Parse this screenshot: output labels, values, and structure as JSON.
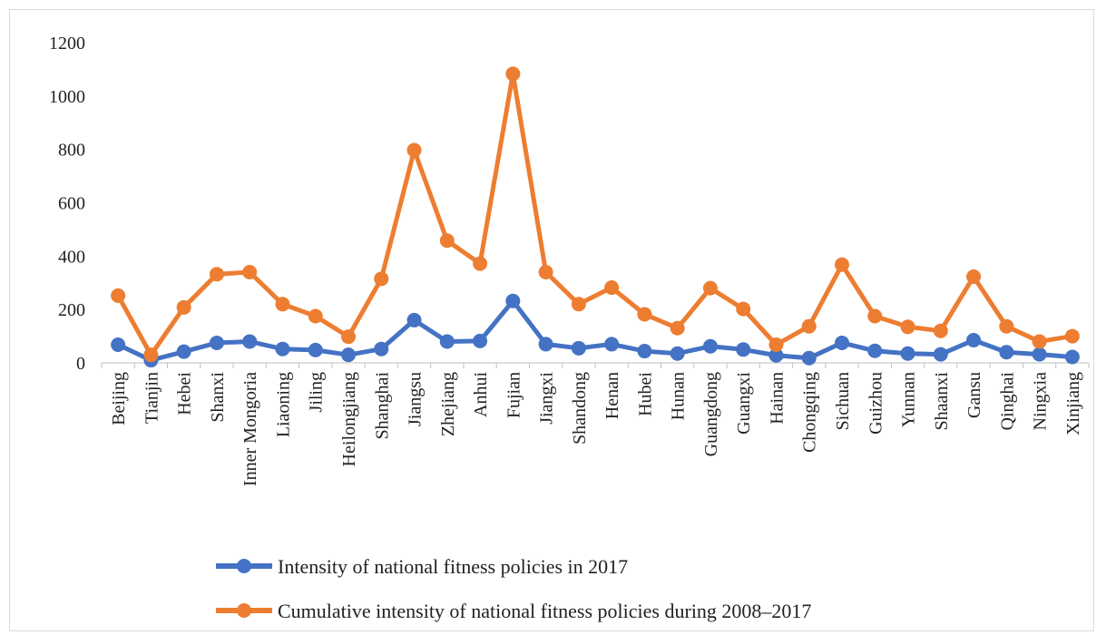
{
  "chart_data": {
    "type": "line",
    "categories": [
      "Beijing",
      "Tianjin",
      "Hebei",
      "Shanxi",
      "Inner Mongoria",
      "Liaoning",
      "Jiling",
      "Heilongjiang",
      "Shanghai",
      "Jiangsu",
      "Zhejiang",
      "Anhui",
      "Fujian",
      "Jiangxi",
      "Shandong",
      "Henan",
      "Hubei",
      "Hunan",
      "Guangdong",
      "Guangxi",
      "Hainan",
      "Chongqing",
      "Sichuan",
      "Guizhou",
      "Yunnan",
      "Shaanxi",
      "Gansu",
      "Qinghai",
      "Ningxia",
      "Xinjiang"
    ],
    "series": [
      {
        "name": "Intensity of national fitness policies in 2017",
        "color": "#4472C4",
        "values": [
          68,
          10,
          42,
          75,
          80,
          52,
          48,
          30,
          52,
          160,
          80,
          82,
          232,
          70,
          55,
          70,
          44,
          35,
          62,
          50,
          28,
          18,
          75,
          45,
          35,
          32,
          85,
          40,
          32,
          22
        ]
      },
      {
        "name": "Cumulative intensity of national fitness policies during 2008–2017",
        "color": "#ED7D31",
        "values": [
          252,
          30,
          208,
          332,
          340,
          220,
          175,
          98,
          315,
          797,
          458,
          372,
          1083,
          340,
          220,
          282,
          182,
          130,
          280,
          202,
          68,
          137,
          368,
          175,
          135,
          120,
          323,
          137,
          80,
          100
        ]
      }
    ],
    "yticks": [
      "0",
      "200",
      "400",
      "600",
      "800",
      "1000",
      "1200"
    ],
    "ylim": [
      0,
      1200
    ],
    "grid": false,
    "legend": "bottom"
  }
}
